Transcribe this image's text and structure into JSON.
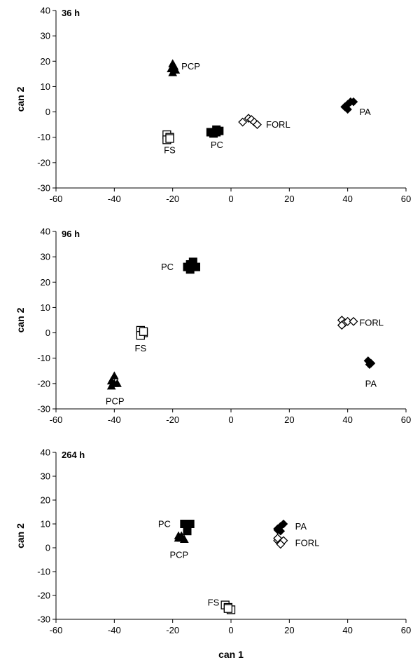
{
  "chart_data": [
    {
      "type": "scatter",
      "title": "36 h",
      "xlabel": "",
      "ylabel": "can 2",
      "xlim": [
        -60,
        60
      ],
      "ylim": [
        -30,
        40
      ],
      "xticks": [
        -60,
        -40,
        -20,
        0,
        20,
        40,
        60
      ],
      "yticks": [
        -30,
        -20,
        -10,
        0,
        10,
        20,
        30,
        40
      ],
      "grid": false,
      "groups": [
        {
          "name": "PCP",
          "marker": "triangle-filled",
          "points": [
            [
              -20,
              19
            ],
            [
              -19.5,
              18
            ],
            [
              -20.5,
              17
            ],
            [
              -19,
              16.5
            ],
            [
              -20,
              15.5
            ]
          ]
        },
        {
          "name": "FS",
          "marker": "square-open",
          "points": [
            [
              -22,
              -9
            ],
            [
              -21,
              -10
            ],
            [
              -22,
              -11
            ],
            [
              -21,
              -10.5
            ]
          ]
        },
        {
          "name": "PC",
          "marker": "square-filled",
          "points": [
            [
              -7,
              -8
            ],
            [
              -5,
              -7
            ],
            [
              -6,
              -8.5
            ],
            [
              -4,
              -7.5
            ],
            [
              -5,
              -8
            ]
          ]
        },
        {
          "name": "FORL",
          "marker": "diamond-open",
          "points": [
            [
              4,
              -4
            ],
            [
              6,
              -2.5
            ],
            [
              7,
              -3
            ],
            [
              8,
              -4
            ],
            [
              9,
              -5
            ]
          ]
        },
        {
          "name": "PA",
          "marker": "diamond-filled",
          "points": [
            [
              39,
              2
            ],
            [
              40,
              1
            ],
            [
              41,
              4
            ],
            [
              40,
              3
            ],
            [
              42,
              4
            ]
          ]
        }
      ],
      "labels": [
        {
          "text": "PCP",
          "x": -17,
          "y": 18
        },
        {
          "text": "FS",
          "x": -23,
          "y": -15
        },
        {
          "text": "PC",
          "x": -7,
          "y": -13
        },
        {
          "text": "FORL",
          "x": 12,
          "y": -5
        },
        {
          "text": "PA",
          "x": 44,
          "y": 0
        }
      ]
    },
    {
      "type": "scatter",
      "title": "96 h",
      "xlabel": "",
      "ylabel": "can 2",
      "xlim": [
        -60,
        60
      ],
      "ylim": [
        -30,
        40
      ],
      "xticks": [
        -60,
        -40,
        -20,
        0,
        20,
        40,
        60
      ],
      "yticks": [
        -30,
        -20,
        -10,
        0,
        10,
        20,
        30,
        40
      ],
      "grid": false,
      "groups": [
        {
          "name": "PC",
          "marker": "square-filled",
          "points": [
            [
              -14,
              27
            ],
            [
              -13,
              28
            ],
            [
              -15,
              26
            ],
            [
              -12,
              26
            ],
            [
              -14,
              25
            ]
          ]
        },
        {
          "name": "FS",
          "marker": "square-open",
          "points": [
            [
              -31,
              1
            ],
            [
              -30,
              0
            ],
            [
              -31,
              -1
            ],
            [
              -30,
              0.5
            ]
          ]
        },
        {
          "name": "PCP",
          "marker": "triangle-filled",
          "points": [
            [
              -41,
              -19
            ],
            [
              -40,
              -17
            ],
            [
              -40,
              -20
            ],
            [
              -39,
              -20
            ],
            [
              -41,
              -21
            ]
          ]
        },
        {
          "name": "FORL",
          "marker": "diamond-open",
          "points": [
            [
              38,
              5
            ],
            [
              39,
              4
            ],
            [
              40,
              4.5
            ],
            [
              42,
              4.5
            ],
            [
              38,
              3
            ]
          ]
        },
        {
          "name": "PA",
          "marker": "diamond-filled",
          "points": [
            [
              47,
              -11
            ],
            [
              48,
              -12
            ],
            [
              47.5,
              -12.5
            ],
            [
              48,
              -12
            ]
          ]
        }
      ],
      "labels": [
        {
          "text": "PC",
          "x": -24,
          "y": 26
        },
        {
          "text": "FS",
          "x": -33,
          "y": -6
        },
        {
          "text": "PCP",
          "x": -43,
          "y": -27
        },
        {
          "text": "FORL",
          "x": 44,
          "y": 4
        },
        {
          "text": "PA",
          "x": 46,
          "y": -20
        }
      ]
    },
    {
      "type": "scatter",
      "title": "264 h",
      "xlabel": "can 1",
      "ylabel": "can 2",
      "xlim": [
        -60,
        60
      ],
      "ylim": [
        -30,
        40
      ],
      "xticks": [
        -60,
        -40,
        -20,
        0,
        20,
        40,
        60
      ],
      "yticks": [
        -30,
        -20,
        -10,
        0,
        10,
        20,
        30,
        40
      ],
      "grid": false,
      "groups": [
        {
          "name": "PC",
          "marker": "square-filled",
          "points": [
            [
              -16,
              10
            ],
            [
              -15,
              9
            ],
            [
              -14,
              10
            ],
            [
              -15,
              8
            ],
            [
              -15,
              7
            ]
          ]
        },
        {
          "name": "PCP",
          "marker": "triangle-filled",
          "points": [
            [
              -18,
              5
            ],
            [
              -17,
              4
            ],
            [
              -16,
              3.5
            ],
            [
              -17,
              5
            ],
            [
              -18,
              4
            ]
          ]
        },
        {
          "name": "PA",
          "marker": "diamond-filled",
          "points": [
            [
              16,
              8
            ],
            [
              17,
              9
            ],
            [
              18,
              10
            ],
            [
              17,
              7
            ],
            [
              16,
              7.5
            ]
          ]
        },
        {
          "name": "FORL",
          "marker": "diamond-open",
          "points": [
            [
              16,
              3
            ],
            [
              17,
              2
            ],
            [
              18,
              3
            ],
            [
              16,
              4
            ],
            [
              17,
              1.5
            ]
          ]
        },
        {
          "name": "FS",
          "marker": "square-open",
          "points": [
            [
              -2,
              -24
            ],
            [
              -1,
              -25
            ],
            [
              0,
              -26
            ],
            [
              -1,
              -25.5
            ]
          ]
        }
      ],
      "labels": [
        {
          "text": "PC",
          "x": -25,
          "y": 10
        },
        {
          "text": "PCP",
          "x": -21,
          "y": -3
        },
        {
          "text": "PA",
          "x": 22,
          "y": 9
        },
        {
          "text": "FORL",
          "x": 22,
          "y": 2
        },
        {
          "text": "FS",
          "x": -8,
          "y": -23
        }
      ]
    }
  ]
}
